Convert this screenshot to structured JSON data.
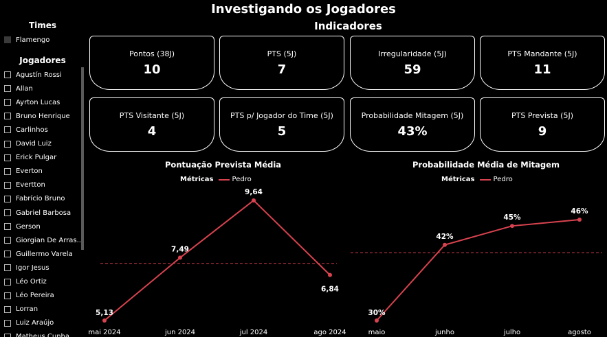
{
  "header": {
    "title": "Investigando os Jogadores",
    "subtitle": "Indicadores"
  },
  "sidebar": {
    "teams_title": "Times",
    "teams": [
      "Flamengo"
    ],
    "players_title": "Jogadores",
    "players": [
      "Agustín Rossi",
      "Allan",
      "Ayrton Lucas",
      "Bruno Henrique",
      "Carlinhos",
      "David Luiz",
      "Erick Pulgar",
      "Everton",
      "Evertton",
      "Fabrício Bruno",
      "Gabriel Barbosa",
      "Gerson",
      "Giorgian De Arras...",
      "Guillermo Varela",
      "Igor Jesus",
      "Léo Ortiz",
      "Léo Pereira",
      "Lorran",
      "Luiz Araújo",
      "Matheus Cunha"
    ]
  },
  "cards": [
    {
      "label": "Pontos (38J)",
      "value": "10"
    },
    {
      "label": "PTS (5J)",
      "value": "7"
    },
    {
      "label": "Irregularidade (5J)",
      "value": "59"
    },
    {
      "label": "PTS Mandante (5J)",
      "value": "11"
    },
    {
      "label": "PTS Visitante (5J)",
      "value": "4"
    },
    {
      "label": "PTS p/ Jogador do Time (5J)",
      "value": "5"
    },
    {
      "label": "Probabilidade Mitagem (5J)",
      "value": "43%"
    },
    {
      "label": "PTS Prevista (5J)",
      "value": "9"
    }
  ],
  "colors": {
    "line": "#d9434f",
    "reference": "#a8323d",
    "background": "#000000"
  },
  "chart_data": [
    {
      "type": "line",
      "title": "Pontuação Prevista Média",
      "legend_title": "Métricas",
      "categories": [
        "mai 2024",
        "jun 2024",
        "jul 2024",
        "ago 2024"
      ],
      "series": [
        {
          "name": "Pedro",
          "values": [
            5.13,
            7.49,
            9.64,
            6.84
          ]
        }
      ],
      "data_labels": [
        "5,13",
        "7,49",
        "9,64",
        "6,84"
      ],
      "average_line": 7.275,
      "ylim": [
        5.13,
        9.64
      ],
      "grid": false,
      "legend_position": "top-center"
    },
    {
      "type": "line",
      "title": "Probabilidade Média de Mitagem",
      "legend_title": "Métricas",
      "categories": [
        "maio",
        "junho",
        "julho",
        "agosto"
      ],
      "series": [
        {
          "name": "Pedro",
          "values": [
            30,
            42,
            45,
            46
          ]
        }
      ],
      "data_labels": [
        "30%",
        "42%",
        "45%",
        "46%"
      ],
      "average_line": 40.75,
      "ylim": [
        30,
        46
      ],
      "grid": false,
      "legend_position": "top-center"
    }
  ]
}
